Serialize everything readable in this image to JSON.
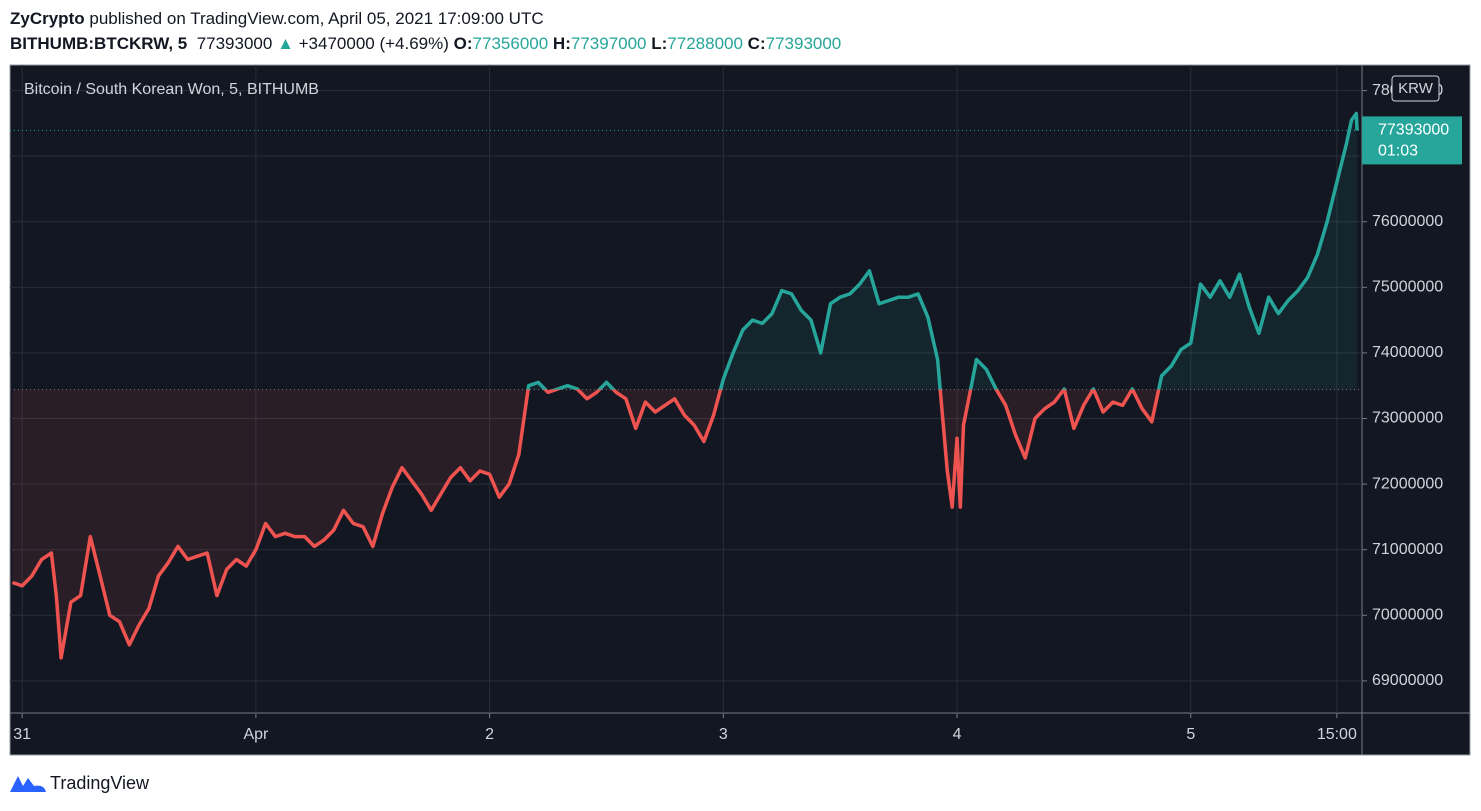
{
  "header": {
    "publisher": "ZyCrypto",
    "published": "published on TradingView.com, April 05, 2021 17:09:00 UTC",
    "symbol": "BITHUMB:BTCKRW, 5",
    "last": "77393000",
    "change_arrow": "▲",
    "change": "+3470000 (+4.69%)",
    "open_label": "O:",
    "open": "77356000",
    "high_label": "H:",
    "high": "77397000",
    "low_label": "L:",
    "low": "77288000",
    "close_label": "C:",
    "close": "77393000"
  },
  "footer": {
    "brand": "TradingView"
  },
  "chart_data": {
    "type": "baseline",
    "title": "Bitcoin / South Korean Won, 5, BITHUMB",
    "currency": "KRW",
    "up_color": "#26a69a",
    "down_color": "#ef5350",
    "baseline": 73440000,
    "last_price": 77393000,
    "countdown": "01:03",
    "grid": true,
    "xlim": [
      "2021-03-30 22:45",
      "2021-04-05 17:35"
    ],
    "xticks": [
      {
        "value": "2021-03-31 00:00",
        "label": "31"
      },
      {
        "value": "2021-04-01 00:00",
        "label": "Apr"
      },
      {
        "value": "2021-04-02 00:00",
        "label": "2"
      },
      {
        "value": "2021-04-03 00:00",
        "label": "3"
      },
      {
        "value": "2021-04-04 00:00",
        "label": "4"
      },
      {
        "value": "2021-04-05 00:00",
        "label": "5"
      },
      {
        "value": "2021-04-05 15:00",
        "label": "15:00"
      }
    ],
    "ylim": [
      68510000,
      78390000
    ],
    "yticks": [
      69000000,
      70000000,
      71000000,
      72000000,
      73000000,
      74000000,
      75000000,
      76000000,
      77000000,
      78000000
    ],
    "x": [
      "2021-03-30 23:00",
      "2021-03-31 00:00",
      "2021-03-31 01:00",
      "2021-03-31 02:00",
      "2021-03-31 03:00",
      "2021-03-31 03:30",
      "2021-03-31 04:00",
      "2021-03-31 05:00",
      "2021-03-31 06:00",
      "2021-03-31 07:00",
      "2021-03-31 08:00",
      "2021-03-31 09:00",
      "2021-03-31 10:00",
      "2021-03-31 11:00",
      "2021-03-31 12:00",
      "2021-03-31 13:00",
      "2021-03-31 14:00",
      "2021-03-31 15:00",
      "2021-03-31 16:00",
      "2021-03-31 17:00",
      "2021-03-31 18:00",
      "2021-03-31 19:00",
      "2021-03-31 20:00",
      "2021-03-31 21:00",
      "2021-03-31 22:00",
      "2021-03-31 23:00",
      "2021-04-01 00:00",
      "2021-04-01 01:00",
      "2021-04-01 02:00",
      "2021-04-01 03:00",
      "2021-04-01 04:00",
      "2021-04-01 05:00",
      "2021-04-01 06:00",
      "2021-04-01 07:00",
      "2021-04-01 08:00",
      "2021-04-01 09:00",
      "2021-04-01 10:00",
      "2021-04-01 11:00",
      "2021-04-01 12:00",
      "2021-04-01 13:00",
      "2021-04-01 14:00",
      "2021-04-01 15:00",
      "2021-04-01 16:00",
      "2021-04-01 17:00",
      "2021-04-01 18:00",
      "2021-04-01 19:00",
      "2021-04-01 20:00",
      "2021-04-01 21:00",
      "2021-04-01 22:00",
      "2021-04-01 23:00",
      "2021-04-02 00:00",
      "2021-04-02 01:00",
      "2021-04-02 02:00",
      "2021-04-02 03:00",
      "2021-04-02 04:00",
      "2021-04-02 05:00",
      "2021-04-02 06:00",
      "2021-04-02 07:00",
      "2021-04-02 08:00",
      "2021-04-02 09:00",
      "2021-04-02 10:00",
      "2021-04-02 11:00",
      "2021-04-02 12:00",
      "2021-04-02 13:00",
      "2021-04-02 14:00",
      "2021-04-02 15:00",
      "2021-04-02 16:00",
      "2021-04-02 17:00",
      "2021-04-02 18:00",
      "2021-04-02 19:00",
      "2021-04-02 20:00",
      "2021-04-02 21:00",
      "2021-04-02 22:00",
      "2021-04-02 23:00",
      "2021-04-03 00:00",
      "2021-04-03 01:00",
      "2021-04-03 02:00",
      "2021-04-03 03:00",
      "2021-04-03 04:00",
      "2021-04-03 05:00",
      "2021-04-03 06:00",
      "2021-04-03 07:00",
      "2021-04-03 08:00",
      "2021-04-03 09:00",
      "2021-04-03 10:00",
      "2021-04-03 11:00",
      "2021-04-03 12:00",
      "2021-04-03 13:00",
      "2021-04-03 14:00",
      "2021-04-03 15:00",
      "2021-04-03 16:00",
      "2021-04-03 17:00",
      "2021-04-03 18:00",
      "2021-04-03 19:00",
      "2021-04-03 20:00",
      "2021-04-03 21:00",
      "2021-04-03 22:00",
      "2021-04-03 23:00",
      "2021-04-03 23:30",
      "2021-04-04 00:00",
      "2021-04-04 00:20",
      "2021-04-04 00:40",
      "2021-04-04 01:00",
      "2021-04-04 02:00",
      "2021-04-04 03:00",
      "2021-04-04 04:00",
      "2021-04-04 05:00",
      "2021-04-04 06:00",
      "2021-04-04 07:00",
      "2021-04-04 08:00",
      "2021-04-04 09:00",
      "2021-04-04 10:00",
      "2021-04-04 11:00",
      "2021-04-04 12:00",
      "2021-04-04 13:00",
      "2021-04-04 14:00",
      "2021-04-04 15:00",
      "2021-04-04 16:00",
      "2021-04-04 17:00",
      "2021-04-04 18:00",
      "2021-04-04 19:00",
      "2021-04-04 20:00",
      "2021-04-04 21:00",
      "2021-04-04 22:00",
      "2021-04-04 23:00",
      "2021-04-05 00:00",
      "2021-04-05 01:00",
      "2021-04-05 02:00",
      "2021-04-05 03:00",
      "2021-04-05 04:00",
      "2021-04-05 05:00",
      "2021-04-05 06:00",
      "2021-04-05 07:00",
      "2021-04-05 08:00",
      "2021-04-05 09:00",
      "2021-04-05 10:00",
      "2021-04-05 11:00",
      "2021-04-05 12:00",
      "2021-04-05 13:00",
      "2021-04-05 14:00",
      "2021-04-05 15:00",
      "2021-04-05 16:00",
      "2021-04-05 16:30",
      "2021-04-05 17:00",
      "2021-04-05 17:05"
    ],
    "values": [
      70500000,
      70450000,
      70600000,
      70850000,
      70950000,
      70300000,
      69350000,
      70200000,
      70300000,
      71200000,
      70600000,
      70000000,
      69900000,
      69550000,
      69850000,
      70100000,
      70600000,
      70800000,
      71050000,
      70850000,
      70900000,
      70950000,
      70300000,
      70700000,
      70850000,
      70750000,
      71000000,
      71400000,
      71200000,
      71250000,
      71200000,
      71200000,
      71050000,
      71150000,
      71300000,
      71600000,
      71400000,
      71350000,
      71050000,
      71550000,
      71950000,
      72250000,
      72050000,
      71850000,
      71600000,
      71850000,
      72100000,
      72250000,
      72050000,
      72200000,
      72150000,
      71800000,
      72000000,
      72450000,
      73500000,
      73550000,
      73400000,
      73450000,
      73500000,
      73450000,
      73300000,
      73400000,
      73550000,
      73400000,
      73300000,
      72850000,
      73250000,
      73100000,
      73200000,
      73300000,
      73050000,
      72900000,
      72650000,
      73050000,
      73600000,
      74000000,
      74350000,
      74500000,
      74450000,
      74600000,
      74950000,
      74900000,
      74650000,
      74500000,
      74000000,
      74750000,
      74850000,
      74900000,
      75050000,
      75250000,
      74750000,
      74800000,
      74850000,
      74850000,
      74900000,
      74550000,
      73900000,
      72200000,
      71650000,
      72700000,
      71650000,
      72900000,
      73150000,
      73900000,
      73750000,
      73450000,
      73200000,
      72750000,
      72400000,
      73000000,
      73150000,
      73250000,
      73450000,
      72850000,
      73200000,
      73450000,
      73100000,
      73250000,
      73200000,
      73450000,
      73150000,
      72950000,
      73650000,
      73800000,
      74050000,
      74150000,
      75050000,
      74850000,
      75100000,
      74850000,
      75200000,
      74700000,
      74300000,
      74850000,
      74600000,
      74800000,
      74950000,
      75150000,
      75500000,
      76000000,
      76600000,
      77200000,
      77550000,
      77650000,
      77393000
    ]
  }
}
